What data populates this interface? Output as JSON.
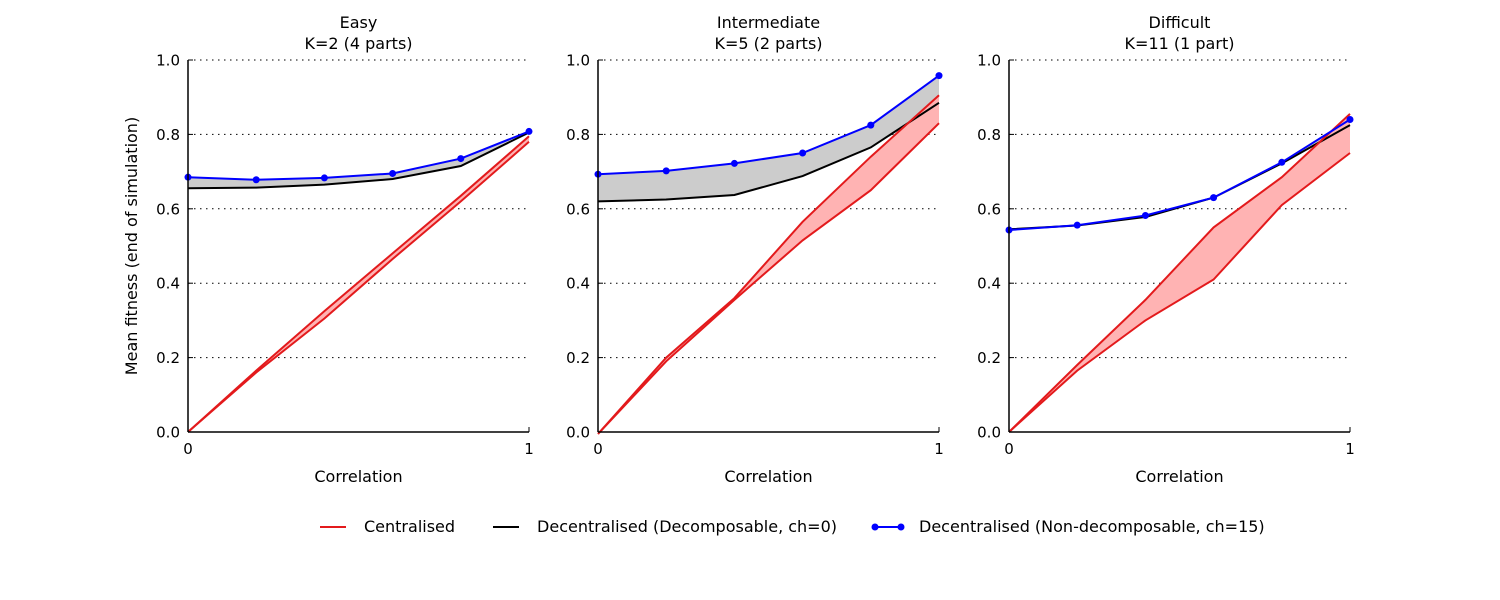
{
  "chart_data": {
    "type": "line",
    "ylabel": "Mean fitness (end of simulation)",
    "legend": {
      "position": "bottom-center",
      "entries": [
        {
          "label": "Centralised",
          "color": "#e31a1c",
          "marker": "none"
        },
        {
          "label": "Decentralised (Decomposable, ch=0)",
          "color": "#000000",
          "marker": "none"
        },
        {
          "label": "Decentralised (Non-decomposable, ch=15)",
          "color": "#0000ff",
          "marker": "circle"
        }
      ]
    },
    "grid": "horizontal-dotted",
    "panels": [
      {
        "title_line1": "Easy",
        "title_line2": "K=2 (4 parts)",
        "xlabel": "Correlation",
        "xlim": [
          0,
          1
        ],
        "ylim": [
          0,
          1
        ],
        "xticks": [
          "0",
          "1"
        ],
        "yticks": [
          "0.0",
          "0.2",
          "0.4",
          "0.6",
          "0.8",
          "1.0"
        ],
        "x": [
          0,
          0.2,
          0.4,
          0.6,
          0.8,
          1.0
        ],
        "centralised_upper": [
          0.0,
          0.165,
          0.325,
          0.48,
          0.635,
          0.795
        ],
        "centralised_lower": [
          0.0,
          0.16,
          0.305,
          0.465,
          0.62,
          0.78
        ],
        "decomposable": [
          0.655,
          0.657,
          0.665,
          0.68,
          0.715,
          0.805
        ],
        "non_decomposable": [
          0.685,
          0.678,
          0.683,
          0.695,
          0.735,
          0.808
        ]
      },
      {
        "title_line1": "Intermediate",
        "title_line2": "K=5 (2 parts)",
        "xlabel": "Correlation",
        "xlim": [
          0,
          1
        ],
        "ylim": [
          0,
          1
        ],
        "xticks": [
          "0",
          "1"
        ],
        "yticks": [
          "0.0",
          "0.2",
          "0.4",
          "0.6",
          "0.8",
          "1.0"
        ],
        "x": [
          0,
          0.2,
          0.4,
          0.6,
          0.8,
          1.0
        ],
        "centralised_upper": [
          -0.005,
          0.2,
          0.36,
          0.565,
          0.74,
          0.905
        ],
        "centralised_lower": [
          -0.005,
          0.19,
          0.355,
          0.515,
          0.65,
          0.83
        ],
        "decomposable": [
          0.62,
          0.625,
          0.637,
          0.688,
          0.765,
          0.885
        ],
        "non_decomposable": [
          0.693,
          0.702,
          0.722,
          0.75,
          0.825,
          0.958
        ]
      },
      {
        "title_line1": "Difficult",
        "title_line2": "K=11 (1 part)",
        "xlabel": "Correlation",
        "xlim": [
          0,
          1
        ],
        "ylim": [
          0,
          1
        ],
        "xticks": [
          "0",
          "1"
        ],
        "yticks": [
          "0.0",
          "0.2",
          "0.4",
          "0.6",
          "0.8",
          "1.0"
        ],
        "x": [
          0,
          0.2,
          0.4,
          0.6,
          0.8,
          1.0
        ],
        "centralised_upper": [
          0.0,
          0.18,
          0.355,
          0.55,
          0.685,
          0.855
        ],
        "centralised_lower": [
          0.0,
          0.165,
          0.3,
          0.41,
          0.61,
          0.75
        ],
        "decomposable": [
          0.545,
          0.555,
          0.578,
          0.63,
          0.722,
          0.825
        ],
        "non_decomposable": [
          0.543,
          0.556,
          0.582,
          0.63,
          0.725,
          0.84
        ]
      }
    ],
    "colors": {
      "centralised": "#e31a1c",
      "centralised_fill": "#ffb3b3",
      "decomposable": "#000000",
      "gap_fill": "#cccccc",
      "non_decomposable": "#0000ff",
      "grid": "#000000"
    }
  }
}
